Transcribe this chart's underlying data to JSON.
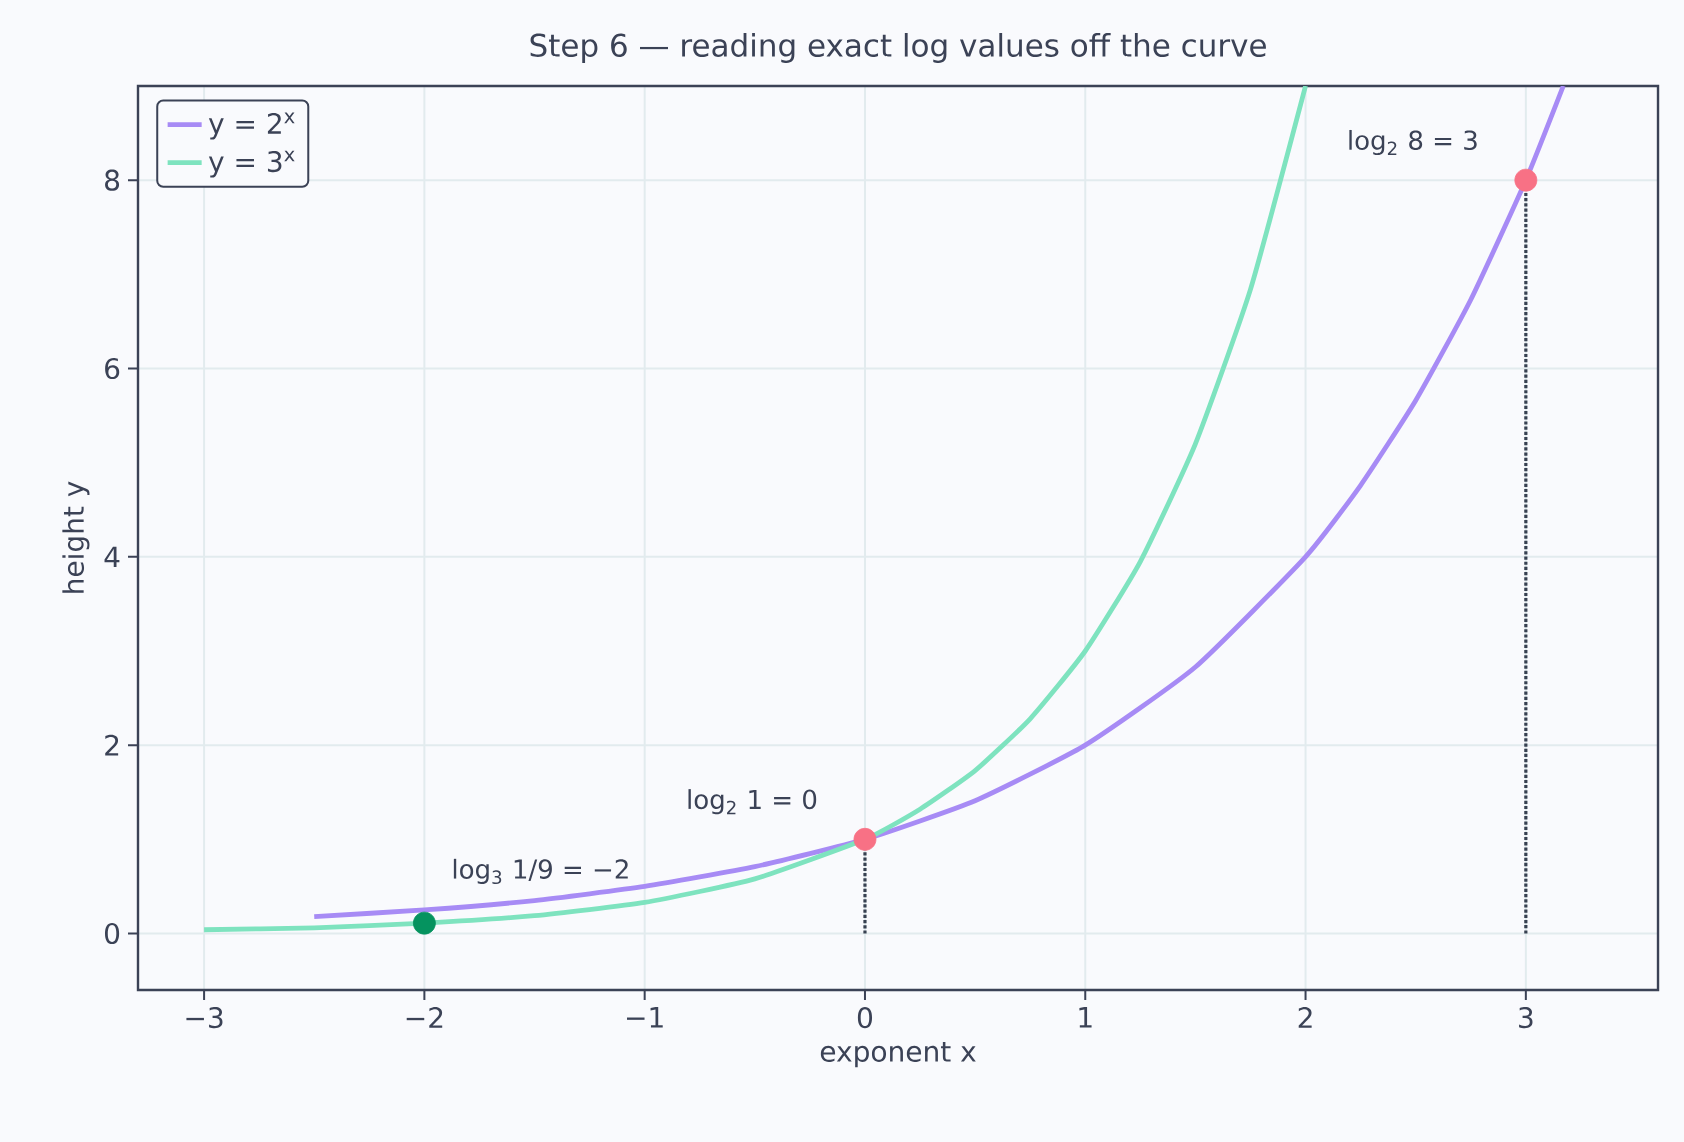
{
  "chart_data": {
    "type": "line",
    "title": "Step 6 — reading exact log values off the curve",
    "xlabel": "exponent  x",
    "ylabel": "height  y",
    "xlim": [
      -3.3,
      3.6
    ],
    "ylim": [
      -0.6,
      9
    ],
    "xticks": [
      {
        "value": -3,
        "label": "−3"
      },
      {
        "value": -2,
        "label": "−2"
      },
      {
        "value": -1,
        "label": "−1"
      },
      0,
      1,
      2,
      3
    ],
    "yticks": [
      0,
      2,
      4,
      6,
      8
    ],
    "grid": true,
    "legend": "top left",
    "series": [
      {
        "name": "y = 2$^{x}$",
        "color": "#a78bf5",
        "x": [
          -2.5,
          -2,
          -1.5,
          -1,
          -0.5,
          0,
          0.5,
          1,
          1.5,
          2,
          2.25,
          2.5,
          2.75,
          3,
          3.17
        ],
        "values": [
          0.18,
          0.25,
          0.35,
          0.5,
          0.71,
          1,
          1.41,
          2,
          2.83,
          4,
          4.76,
          5.66,
          6.73,
          8,
          9
        ]
      },
      {
        "name": "y = 3$^{x}$",
        "color": "#7ee3bf",
        "x": [
          -3,
          -2.5,
          -2,
          -1.5,
          -1,
          -0.5,
          0,
          0.25,
          0.5,
          0.75,
          1,
          1.25,
          1.5,
          1.75,
          2
        ],
        "values": [
          0.04,
          0.06,
          0.11,
          0.19,
          0.33,
          0.58,
          1,
          1.32,
          1.73,
          2.28,
          3,
          3.95,
          5.2,
          6.84,
          9
        ]
      },
      {
        "type": "line",
        "line_style": "dotted",
        "color": "#374151",
        "x": [
          0,
          0
        ],
        "values": [
          0,
          1
        ]
      },
      {
        "type": "line",
        "line_style": "dotted",
        "color": "#374151",
        "x": [
          3,
          3
        ],
        "values": [
          0,
          8
        ]
      },
      {
        "type": "scatter",
        "marker": "circle",
        "color": "#f87185",
        "x": [
          0,
          3
        ],
        "values": [
          1,
          8
        ]
      },
      {
        "type": "scatter",
        "marker": "circle",
        "color": "#05935f",
        "x": [
          -2
        ],
        "values": [
          0.11
        ]
      }
    ],
    "annotations": [
      {
        "text": "log$_{2}$ 8 = 3",
        "x": 3,
        "y": 8
      },
      {
        "text": "log$_{2}$ 1 = 0",
        "x": 0,
        "y": 1
      },
      {
        "text": "log$_{3}$ 1/9 = −2",
        "x": -2,
        "y": 0.11
      }
    ]
  }
}
